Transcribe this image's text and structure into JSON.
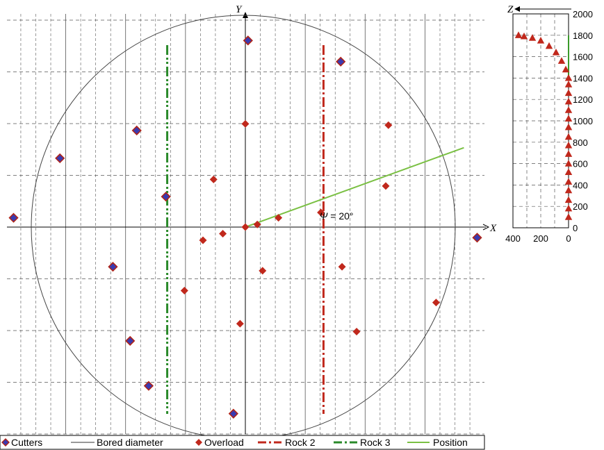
{
  "colors": {
    "cutter_fill": "#3a3ab0",
    "cutter_edge": "#b02418",
    "overload": "#c0281c",
    "rock2": "#c0281c",
    "rock3": "#2a8a2a",
    "position": "#7ac043",
    "circle": "#444444",
    "grid": "#555555"
  },
  "chart_data": [
    {
      "type": "scatter",
      "title": "",
      "xlabel": "X",
      "ylabel": "Y",
      "xlim": [
        -1800,
        1800
      ],
      "ylim": [
        -1600,
        1600
      ],
      "grid": true,
      "bored_radius": 1800,
      "series": [
        {
          "name": "Cutters",
          "marker": "diamond",
          "points": [
            [
              20,
              1410
            ],
            [
              720,
              1250
            ],
            [
              -820,
              730
            ],
            [
              -1400,
              520
            ],
            [
              -600,
              230
            ],
            [
              -1750,
              70
            ],
            [
              1750,
              -80
            ],
            [
              -1000,
              -300
            ],
            [
              -870,
              -860
            ],
            [
              -730,
              -1200
            ],
            [
              -90,
              -1410
            ]
          ]
        },
        {
          "name": "Bored diameter",
          "type": "circle"
        },
        {
          "name": "Overload",
          "marker": "diamond",
          "points": [
            [
              0,
              0
            ],
            [
              90,
              20
            ],
            [
              250,
              70
            ],
            [
              570,
              110
            ],
            [
              1060,
              310
            ],
            [
              1080,
              770
            ],
            [
              -240,
              360
            ],
            [
              0,
              780
            ],
            [
              -170,
              -50
            ],
            [
              -320,
              -100
            ],
            [
              130,
              -330
            ],
            [
              730,
              -300
            ],
            [
              -460,
              -480
            ],
            [
              -40,
              -730
            ],
            [
              840,
              -790
            ],
            [
              1440,
              -570
            ]
          ]
        },
        {
          "name": "Rock 2",
          "style": "dash-dot",
          "x": 590
        },
        {
          "name": "Rock 3",
          "style": "dash-dot-dot",
          "x": -590
        },
        {
          "name": "Position",
          "style": "solid",
          "angle_deg": 20,
          "points": [
            [
              0,
              0
            ],
            [
              1650,
              600
            ]
          ]
        }
      ],
      "annotations": [
        {
          "symbol": "Ψ",
          "text": " = 20°",
          "x": 770,
          "y": 120
        }
      ]
    },
    {
      "type": "scatter",
      "title": "",
      "xlabel": "Z",
      "ylabel": "",
      "xlim": [
        400,
        0
      ],
      "ylim": [
        0,
        2000
      ],
      "xticks": [
        400,
        200,
        0
      ],
      "yticks": [
        0,
        200,
        400,
        600,
        800,
        1000,
        1200,
        1400,
        1600,
        1800,
        2000
      ],
      "grid": true,
      "series": [
        {
          "name": "Overload",
          "marker": "triangle",
          "points": [
            [
              0,
              100
            ],
            [
              0,
              180
            ],
            [
              0,
              260
            ],
            [
              0,
              350
            ],
            [
              0,
              430
            ],
            [
              0,
              520
            ],
            [
              0,
              600
            ],
            [
              0,
              690
            ],
            [
              0,
              770
            ],
            [
              0,
              850
            ],
            [
              0,
              940
            ],
            [
              0,
              1020
            ],
            [
              0,
              1100
            ],
            [
              0,
              1180
            ],
            [
              0,
              1260
            ],
            [
              0,
              1340
            ],
            [
              0,
              1400
            ],
            [
              20,
              1480
            ],
            [
              50,
              1560
            ],
            [
              90,
              1640
            ],
            [
              140,
              1700
            ],
            [
              200,
              1750
            ],
            [
              260,
              1775
            ],
            [
              320,
              1790
            ],
            [
              360,
              1800
            ]
          ]
        },
        {
          "name": "Position",
          "style": "solid",
          "points": [
            [
              0,
              1400
            ],
            [
              0,
              1800
            ]
          ]
        }
      ]
    }
  ]
}
